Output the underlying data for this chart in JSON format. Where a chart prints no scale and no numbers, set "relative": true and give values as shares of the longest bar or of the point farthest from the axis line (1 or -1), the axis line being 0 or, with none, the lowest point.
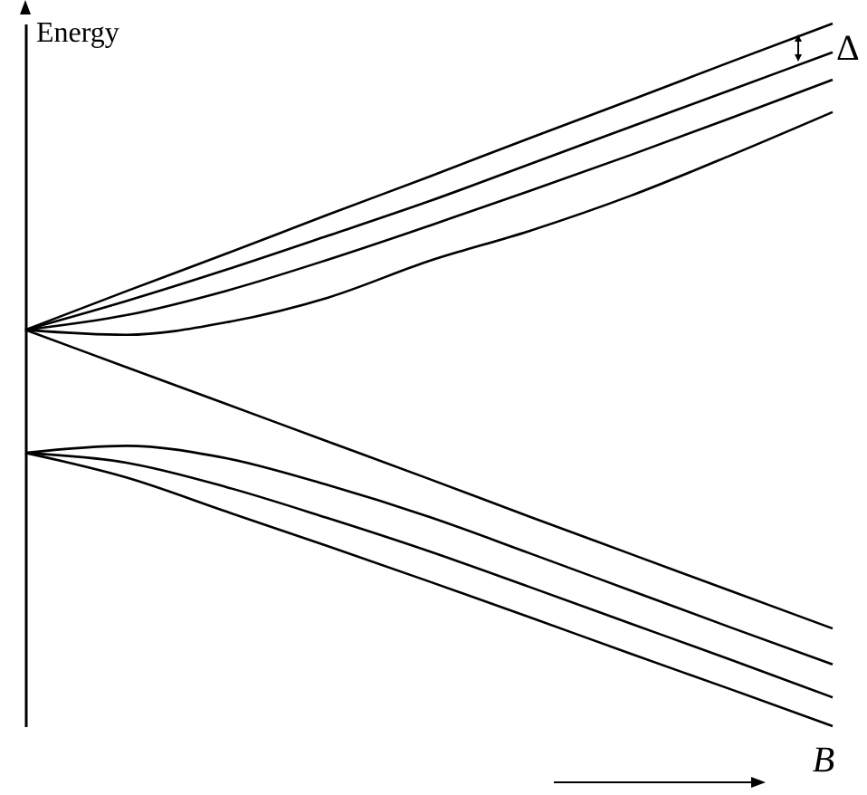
{
  "chart_data": {
    "type": "line",
    "relative": true,
    "xlabel": "B",
    "ylabel": "Energy",
    "annotations": [
      "Δ"
    ],
    "categories": [
      null,
      null,
      null,
      null,
      null,
      null,
      null,
      null,
      null
    ],
    "series": [
      {
        "color": "#000000",
        "values": [
          0.564,
          0.619,
          0.673,
          0.728,
          0.782,
          0.837,
          0.891,
          0.946,
          1
        ]
      },
      {
        "color": "#000000",
        "values": [
          0.564,
          0.605,
          0.65,
          0.698,
          0.747,
          0.8,
          0.853,
          0.906,
          0.959
        ]
      },
      {
        "color": "#000000",
        "values": [
          0.564,
          0.585,
          0.62,
          0.664,
          0.712,
          0.762,
          0.813,
          0.866,
          0.92
        ]
      },
      {
        "color": "#000000",
        "values": [
          0.564,
          0.557,
          0.575,
          0.61,
          0.662,
          0.705,
          0.755,
          0.813,
          0.874
        ]
      },
      {
        "color": "#000000",
        "values": [
          0.564,
          0.511,
          0.458,
          0.405,
          0.352,
          0.298,
          0.245,
          0.192,
          0.139
        ]
      },
      {
        "color": "#000000",
        "values": [
          0.389,
          0.399,
          0.381,
          0.343,
          0.298,
          0.246,
          0.193,
          0.14,
          0.088
        ]
      },
      {
        "color": "#000000",
        "values": [
          0.389,
          0.375,
          0.34,
          0.296,
          0.249,
          0.198,
          0.146,
          0.094,
          0.041
        ]
      },
      {
        "color": "#000000",
        "values": [
          0.389,
          0.354,
          0.305,
          0.256,
          0.206,
          0.155,
          0.103,
          0.052,
          0
        ]
      }
    ]
  }
}
